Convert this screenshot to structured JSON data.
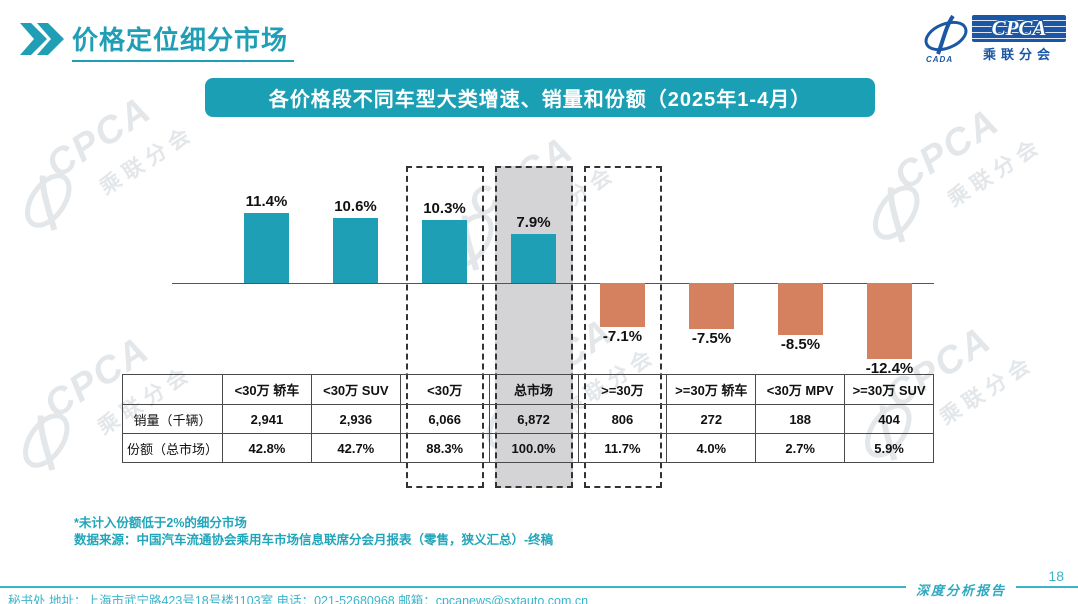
{
  "header": {
    "title": "价格定位细分市场",
    "logo": {
      "cpca": "CPCA",
      "cada": "CADA",
      "subtitle": "乘联分会"
    }
  },
  "banner": {
    "title": "各价格段不同车型大类增速、销量和份额（2025年1-4月）"
  },
  "chart_data": {
    "type": "bar",
    "title": "各价格段不同车型大类增速、销量和份额（2025年1-4月）",
    "categories": [
      "<30万 轿车",
      "<30万 SUV",
      "<30万",
      "总市场",
      ">=30万",
      ">=30万 轿车",
      "<30万 MPV",
      ">=30万 SUV"
    ],
    "series": [
      {
        "name": "增速",
        "unit": "%",
        "values": [
          11.4,
          10.6,
          10.3,
          7.9,
          -7.1,
          -7.5,
          -8.5,
          -12.4
        ]
      },
      {
        "name": "销量（千辆）",
        "values": [
          2941,
          2936,
          6066,
          6872,
          806,
          272,
          188,
          404
        ]
      },
      {
        "name": "份额（总市场）",
        "unit": "%",
        "values": [
          42.8,
          42.7,
          88.3,
          100.0,
          11.7,
          4.0,
          2.7,
          5.9
        ]
      }
    ],
    "bar_labels": [
      "11.4%",
      "10.6%",
      "10.3%",
      "7.9%",
      "-7.1%",
      "-7.5%",
      "-8.5%",
      "-12.4%"
    ],
    "dashed_box_columns": [
      2,
      3,
      4
    ],
    "gray_column": 3,
    "positive_color": "#1f9fb5",
    "negative_color": "#d5815f",
    "ylim": [
      -14,
      13
    ],
    "grid": false,
    "legend": "none"
  },
  "table": {
    "row_headers": [
      "销量（千辆）",
      "份额（总市场）"
    ],
    "col_headers": [
      "<30万 轿车",
      "<30万 SUV",
      "<30万",
      "总市场",
      ">=30万",
      ">=30万 轿车",
      "<30万 MPV",
      ">=30万 SUV"
    ],
    "rows": [
      [
        "2,941",
        "2,936",
        "6,066",
        "6,872",
        "806",
        "272",
        "188",
        "404"
      ],
      [
        "42.8%",
        "42.7%",
        "88.3%",
        "100.0%",
        "11.7%",
        "4.0%",
        "2.7%",
        "5.9%"
      ]
    ]
  },
  "footnotes": {
    "line1": "*未计入份额低于2%的细分市场",
    "line2": "数据来源：中国汽车流通协会乘用车市场信息联席分会月报表（零售，狭义汇总）-终稿"
  },
  "footer": {
    "contact": "秘书处  地址：上海市武宁路423号18号楼1103室 电话：021-52680968  邮箱：cpcanews@sxtauto.com.cn",
    "report_label": "深度分析报告",
    "page_number": "18"
  },
  "watermark": {
    "logo_text": "CPCA",
    "logo_subtext": "乘联分会"
  }
}
